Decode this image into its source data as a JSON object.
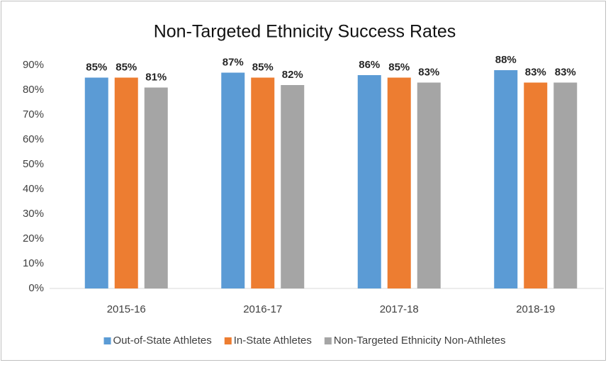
{
  "chart_data": {
    "type": "bar",
    "title": "Non-Targeted Ethnicity Success Rates",
    "categories": [
      "2015-16",
      "2016-17",
      "2017-18",
      "2018-19"
    ],
    "series": [
      {
        "name": "Out-of-State Athletes",
        "color": "#5b9bd5",
        "values": [
          85,
          87,
          86,
          88
        ],
        "value_labels": [
          "85%",
          "87%",
          "86%",
          "88%"
        ]
      },
      {
        "name": "In-State Athletes",
        "color": "#ed7d31",
        "values": [
          85,
          85,
          85,
          83
        ],
        "value_labels": [
          "85%",
          "85%",
          "85%",
          "83%"
        ]
      },
      {
        "name": "Non-Targeted Ethnicity Non-Athletes",
        "color": "#a5a5a5",
        "values": [
          81,
          82,
          83,
          83
        ],
        "value_labels": [
          "81%",
          "82%",
          "83%",
          "83%"
        ]
      }
    ],
    "ylim": [
      0,
      90
    ],
    "yticks": [
      {
        "value": 0,
        "label": "0%"
      },
      {
        "value": 10,
        "label": "10%"
      },
      {
        "value": 20,
        "label": "20%"
      },
      {
        "value": 30,
        "label": "30%"
      },
      {
        "value": 40,
        "label": "40%"
      },
      {
        "value": 50,
        "label": "50%"
      },
      {
        "value": 60,
        "label": "60%"
      },
      {
        "value": 70,
        "label": "70%"
      },
      {
        "value": 80,
        "label": "80%"
      },
      {
        "value": 90,
        "label": "90%"
      }
    ],
    "grid": false,
    "legend": "bottom"
  }
}
